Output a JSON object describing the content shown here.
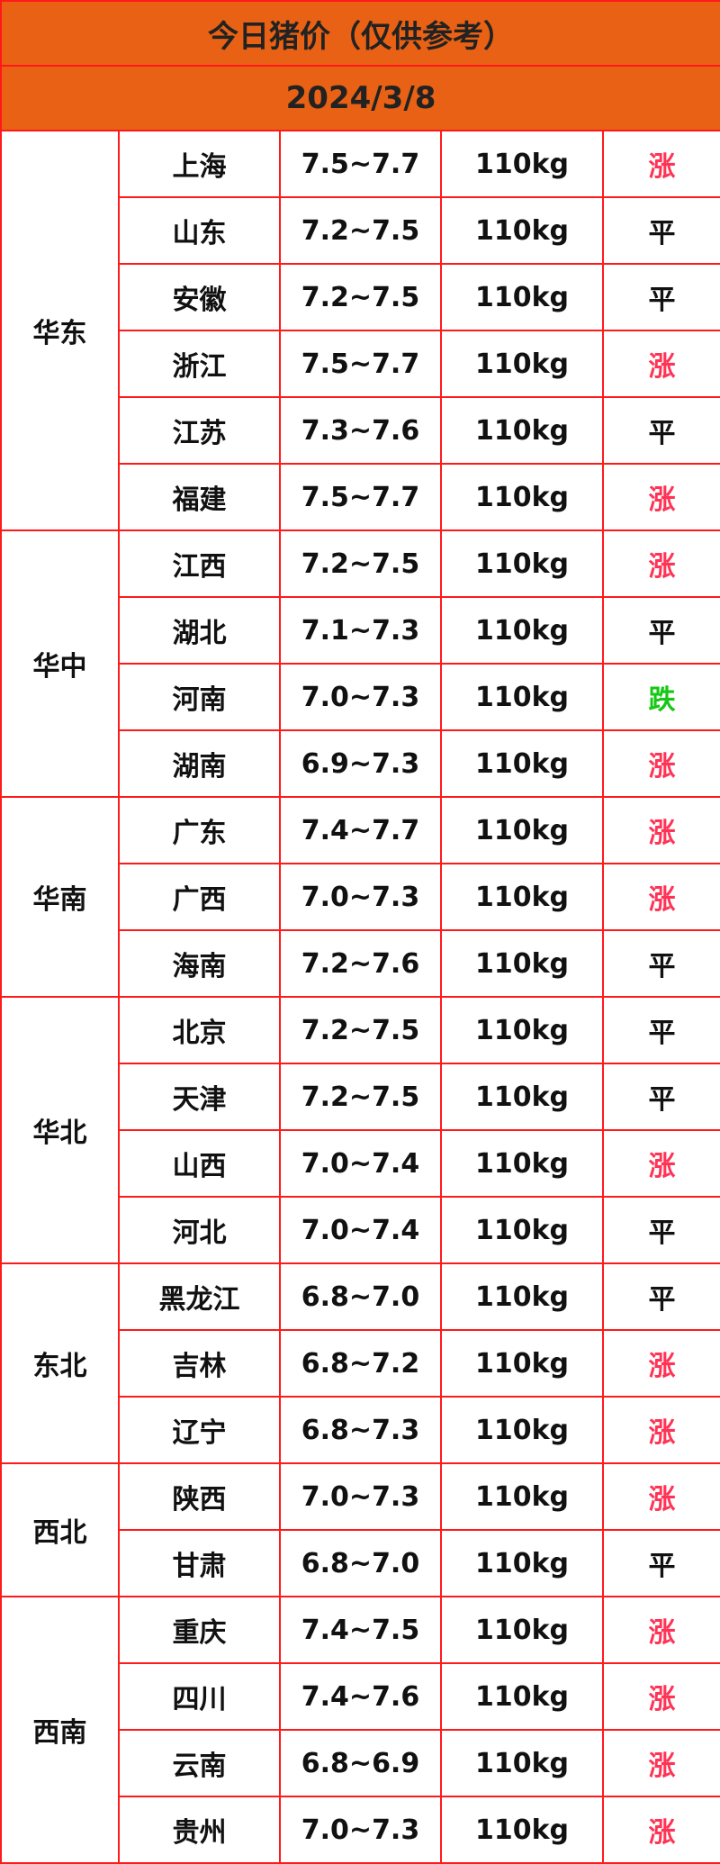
{
  "title": "今日猪价（仅供参考）",
  "date": "2024/3/8",
  "colors": {
    "header_bg": "#e86114",
    "border": "#ff1a1a",
    "up": "#ff3355",
    "down": "#14c814",
    "flat": "#111111"
  },
  "groups": [
    {
      "region": "华东",
      "rows": [
        {
          "province": "上海",
          "price": "7.5~7.7",
          "weight": "110kg",
          "trend": "涨"
        },
        {
          "province": "山东",
          "price": "7.2~7.5",
          "weight": "110kg",
          "trend": "平"
        },
        {
          "province": "安徽",
          "price": "7.2~7.5",
          "weight": "110kg",
          "trend": "平"
        },
        {
          "province": "浙江",
          "price": "7.5~7.7",
          "weight": "110kg",
          "trend": "涨"
        },
        {
          "province": "江苏",
          "price": "7.3~7.6",
          "weight": "110kg",
          "trend": "平"
        },
        {
          "province": "福建",
          "price": "7.5~7.7",
          "weight": "110kg",
          "trend": "涨"
        }
      ]
    },
    {
      "region": "华中",
      "rows": [
        {
          "province": "江西",
          "price": "7.2~7.5",
          "weight": "110kg",
          "trend": "涨"
        },
        {
          "province": "湖北",
          "price": "7.1~7.3",
          "weight": "110kg",
          "trend": "平"
        },
        {
          "province": "河南",
          "price": "7.0~7.3",
          "weight": "110kg",
          "trend": "跌"
        },
        {
          "province": "湖南",
          "price": "6.9~7.3",
          "weight": "110kg",
          "trend": "涨"
        }
      ]
    },
    {
      "region": "华南",
      "rows": [
        {
          "province": "广东",
          "price": "7.4~7.7",
          "weight": "110kg",
          "trend": "涨"
        },
        {
          "province": "广西",
          "price": "7.0~7.3",
          "weight": "110kg",
          "trend": "涨"
        },
        {
          "province": "海南",
          "price": "7.2~7.6",
          "weight": "110kg",
          "trend": "平"
        }
      ]
    },
    {
      "region": "华北",
      "rows": [
        {
          "province": "北京",
          "price": "7.2~7.5",
          "weight": "110kg",
          "trend": "平"
        },
        {
          "province": "天津",
          "price": "7.2~7.5",
          "weight": "110kg",
          "trend": "平"
        },
        {
          "province": "山西",
          "price": "7.0~7.4",
          "weight": "110kg",
          "trend": "涨"
        },
        {
          "province": "河北",
          "price": "7.0~7.4",
          "weight": "110kg",
          "trend": "平"
        }
      ]
    },
    {
      "region": "东北",
      "rows": [
        {
          "province": "黑龙江",
          "price": "6.8~7.0",
          "weight": "110kg",
          "trend": "平"
        },
        {
          "province": "吉林",
          "price": "6.8~7.2",
          "weight": "110kg",
          "trend": "涨"
        },
        {
          "province": "辽宁",
          "price": "6.8~7.3",
          "weight": "110kg",
          "trend": "涨"
        }
      ]
    },
    {
      "region": "西北",
      "rows": [
        {
          "province": "陕西",
          "price": "7.0~7.3",
          "weight": "110kg",
          "trend": "涨"
        },
        {
          "province": "甘肃",
          "price": "6.8~7.0",
          "weight": "110kg",
          "trend": "平"
        }
      ]
    },
    {
      "region": "西南",
      "rows": [
        {
          "province": "重庆",
          "price": "7.4~7.5",
          "weight": "110kg",
          "trend": "涨"
        },
        {
          "province": "四川",
          "price": "7.4~7.6",
          "weight": "110kg",
          "trend": "涨"
        },
        {
          "province": "云南",
          "price": "6.8~6.9",
          "weight": "110kg",
          "trend": "涨"
        },
        {
          "province": "贵州",
          "price": "7.0~7.3",
          "weight": "110kg",
          "trend": "涨"
        }
      ]
    }
  ]
}
